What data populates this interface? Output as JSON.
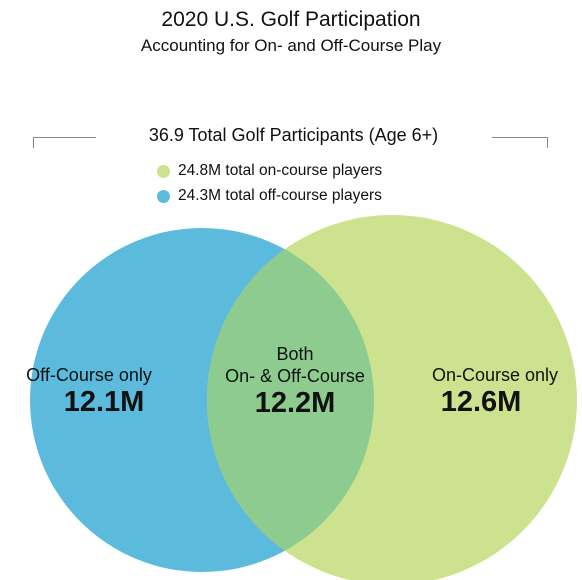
{
  "header": {
    "title": "2020 U.S. Golf Participation",
    "subtitle": "Accounting for On- and Off-Course Play"
  },
  "total": {
    "label": "36.9 Total Golf Participants (Age 6+)"
  },
  "legend": [
    {
      "label": "24.8M total on-course players",
      "color": "#cde28f"
    },
    {
      "label": "24.3M total off-course players",
      "color": "#5cbbdc"
    }
  ],
  "regions": {
    "off_course_only": {
      "label": "Off-Course only",
      "value": "12.1M"
    },
    "both": {
      "label_line1": "Both",
      "label_line2": "On- & Off-Course",
      "value": "12.2M"
    },
    "on_course_only": {
      "label": "On-Course only",
      "value": "12.6M"
    }
  },
  "colors": {
    "off_course": "#5cbbdc",
    "on_course": "#cde28f",
    "overlap": "#8dcb8e"
  }
}
